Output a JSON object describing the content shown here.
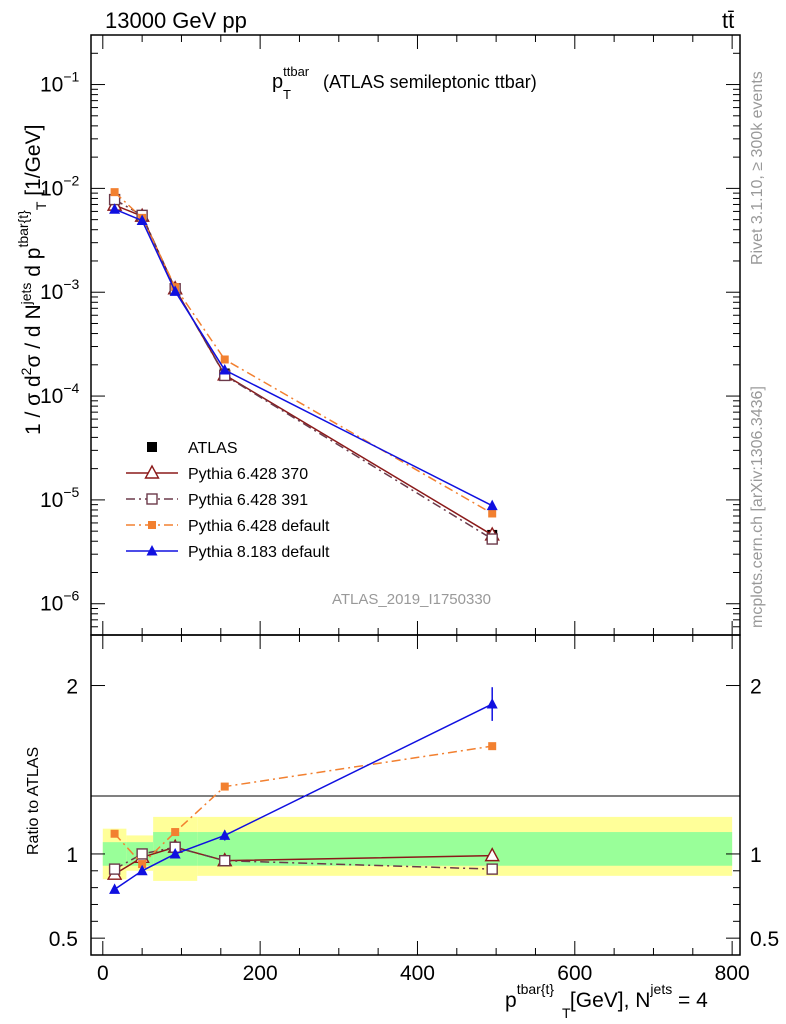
{
  "header": {
    "energy_label": "13000 GeV pp",
    "process_label": "tt̄"
  },
  "side_labels": {
    "rivet": "Rivet 3.1.10, ≥ 300k events",
    "mcplots": "mcplots.cern.ch [arXiv:1306.3436]"
  },
  "analysis_id": "ATLAS_2019_I1750330",
  "chart_data": [
    {
      "panel": "main",
      "type": "line",
      "title": {
        "main": "p",
        "sup": "ttbar",
        "sub": "T",
        "rest": " (ATLAS semileptonic ttbar)"
      },
      "ylabel": "1 / σ d²σ / d Nʲᵉᵗˢ d p_T^{tbar{t}} [1/GeV]",
      "yscale": "log",
      "ylim": [
        5e-07,
        0.3
      ],
      "xlim": [
        -15,
        810
      ],
      "y_tick_labels": [
        {
          "base": "10",
          "exp": "−1",
          "value": 0.1
        },
        {
          "base": "10",
          "exp": "−2",
          "value": 0.01
        },
        {
          "base": "10",
          "exp": "−3",
          "value": 0.001
        },
        {
          "base": "10",
          "exp": "−4",
          "value": 0.0001
        },
        {
          "base": "10",
          "exp": "−5",
          "value": 1e-05
        },
        {
          "base": "10",
          "exp": "−6",
          "value": 1e-06
        }
      ],
      "x": [
        15,
        50,
        92,
        155,
        495
      ],
      "series": [
        {
          "name": "ATLAS",
          "color": "#000000",
          "marker": "square-filled",
          "line": "none",
          "values": [
            0.0077,
            0.0055,
            0.00105,
            0.000165,
            4.6e-06
          ]
        },
        {
          "name": "Pythia 6.428 370",
          "color": "#8b1a1a",
          "marker": "triangle-open",
          "line": "solid",
          "values": [
            0.0069,
            0.0054,
            0.00108,
            0.00016,
            4.6e-06
          ]
        },
        {
          "name": "Pythia 6.428 391",
          "color": "#6b3a4a",
          "marker": "square-open",
          "line": "dashdot",
          "values": [
            0.0078,
            0.0055,
            0.00108,
            0.000158,
            4.2e-06
          ]
        },
        {
          "name": "Pythia 6.428 default",
          "color": "#f28030",
          "marker": "square-filled-small",
          "line": "dashdot",
          "values": [
            0.0092,
            0.0052,
            0.00112,
            0.000225,
            7.4e-06
          ]
        },
        {
          "name": "Pythia 8.183 default",
          "color": "#1010e0",
          "marker": "triangle-filled",
          "line": "solid",
          "values": [
            0.0063,
            0.0049,
            0.00102,
            0.000178,
            8.8e-06
          ]
        }
      ]
    },
    {
      "panel": "ratio",
      "type": "line",
      "ylabel": "Ratio to ATLAS",
      "ylim": [
        0.4,
        2.3
      ],
      "xlim": [
        -15,
        810
      ],
      "y_tick_labels": [
        "0.5",
        "1",
        "2"
      ],
      "y_ticks": [
        0.5,
        1,
        2
      ],
      "x_tick_labels": [
        "0",
        "200",
        "400",
        "600",
        "800"
      ],
      "x_ticks": [
        0,
        200,
        400,
        600,
        800
      ],
      "xlabel": {
        "main": "p",
        "sup": "tbar{t}",
        "sub": "T",
        "mid": " [GeV], N",
        "sup2": "jets",
        "end": " = 4"
      },
      "uncertainty_bands": [
        {
          "x0": 0,
          "x1": 30,
          "inner": [
            0.93,
            1.07
          ],
          "outer": [
            0.85,
            1.15
          ]
        },
        {
          "x0": 30,
          "x1": 64,
          "inner": [
            0.93,
            1.07
          ],
          "outer": [
            0.9,
            1.11
          ]
        },
        {
          "x0": 64,
          "x1": 120,
          "inner": [
            0.93,
            1.13
          ],
          "outer": [
            0.84,
            1.22
          ]
        },
        {
          "x0": 120,
          "x1": 800,
          "inner": [
            0.93,
            1.13
          ],
          "outer": [
            0.87,
            1.22
          ]
        }
      ],
      "x": [
        15,
        50,
        92,
        155,
        495
      ],
      "series": [
        {
          "name": "Pythia 6.428 370",
          "color": "#8b1a1a",
          "marker": "triangle-open",
          "line": "solid",
          "values": [
            0.88,
            0.98,
            1.04,
            0.96,
            0.99
          ]
        },
        {
          "name": "Pythia 6.428 391",
          "color": "#6b3a4a",
          "marker": "square-open",
          "line": "dashdot",
          "values": [
            0.91,
            1.0,
            1.04,
            0.96,
            0.91
          ]
        },
        {
          "name": "Pythia 6.428 default",
          "color": "#f28030",
          "marker": "square-filled-small",
          "line": "dashdot",
          "values": [
            1.12,
            0.94,
            1.13,
            1.4,
            1.64
          ],
          "errors": [
            0.01,
            0.01,
            0.01,
            0.01,
            0.02
          ]
        },
        {
          "name": "Pythia 8.183 default",
          "color": "#1010e0",
          "marker": "triangle-filled",
          "line": "solid",
          "values": [
            0.79,
            0.9,
            1.0,
            1.11,
            1.89
          ],
          "errors": [
            0.01,
            0.01,
            0.01,
            0.03,
            0.1
          ]
        }
      ]
    }
  ]
}
